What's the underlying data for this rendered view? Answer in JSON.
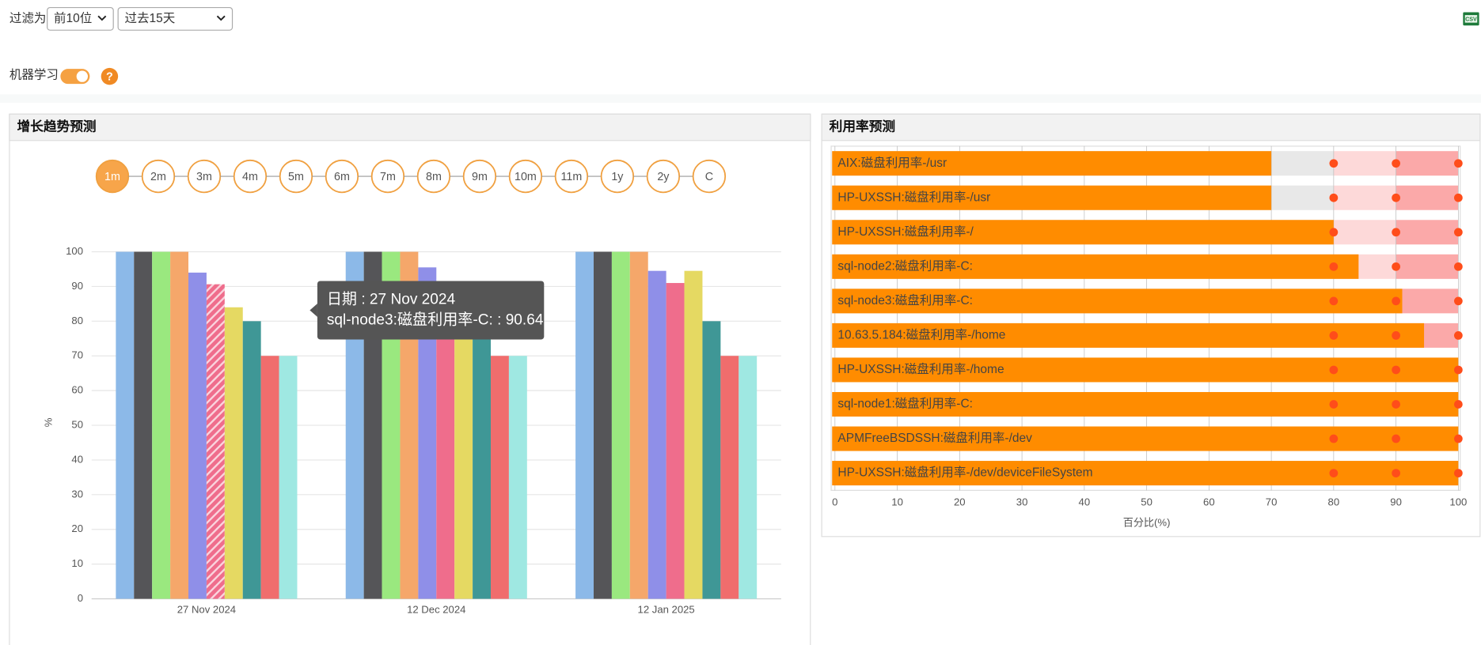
{
  "filter": {
    "label": "过滤为",
    "top": "前10位",
    "period": "过去15天"
  },
  "ml": {
    "label": "机器学习",
    "help": "?"
  },
  "csv": "CSV",
  "chart_data": [
    {
      "type": "bar",
      "title": "增长趋势预测",
      "ranges": [
        "1m",
        "2m",
        "3m",
        "4m",
        "5m",
        "6m",
        "7m",
        "8m",
        "9m",
        "10m",
        "11m",
        "1y",
        "2y",
        "C"
      ],
      "active_range": 0,
      "categories": [
        "27 Nov 2024",
        "12 Dec 2024",
        "12 Jan 2025"
      ],
      "series": [
        {
          "color": "#8cb9e8",
          "values": [
            100,
            100,
            100
          ]
        },
        {
          "color": "#555558",
          "values": [
            100,
            100,
            100
          ]
        },
        {
          "color": "#9ae87f",
          "values": [
            100,
            100,
            100
          ]
        },
        {
          "color": "#f5a76a",
          "values": [
            100,
            100,
            100
          ]
        },
        {
          "color": "#8f8fe8",
          "values": [
            94,
            95.5,
            94.5
          ]
        },
        {
          "color": "#ef6d8c",
          "values": [
            90.64,
            91,
            91
          ]
        },
        {
          "color": "#e5d962",
          "values": [
            84,
            84,
            94.5
          ]
        },
        {
          "color": "#3f9796",
          "values": [
            80,
            80,
            80
          ]
        },
        {
          "color": "#f06d6d",
          "values": [
            70,
            70,
            70
          ]
        },
        {
          "color": "#9fe8e2",
          "values": [
            70,
            70,
            70
          ]
        }
      ],
      "ylim": [
        0,
        100
      ],
      "yticks": [
        0,
        10,
        20,
        30,
        40,
        50,
        60,
        70,
        80,
        90,
        100
      ],
      "ylabel": "%",
      "grid": true,
      "tooltip": {
        "lines": [
          "日期 : 27 Nov 2024",
          "sql-node3:磁盘利用率-C: : 90.64"
        ],
        "series": 5,
        "category": 0
      }
    },
    {
      "type": "bullet",
      "title": "利用率预测",
      "categories": [
        "AIX:磁盘利用率-/usr",
        "HP-UXSSH:磁盘利用率-/usr",
        "HP-UXSSH:磁盘利用率-/",
        "sql-node2:磁盘利用率-C:",
        "sql-node3:磁盘利用率-C:",
        "10.63.5.184:磁盘利用率-/home",
        "HP-UXSSH:磁盘利用率-/home",
        "sql-node1:磁盘利用率-C:",
        "APMFreeBSDSSH:磁盘利用率-/dev",
        "HP-UXSSH:磁盘利用率-/dev/deviceFileSystem"
      ],
      "values": [
        70,
        70,
        80,
        84,
        91,
        94.5,
        100,
        100,
        100,
        100
      ],
      "color": "#ff8c00",
      "thresholds": [
        80,
        90,
        100
      ],
      "threshold_color": "#ff4d1a",
      "band_colors": [
        "#e8e8e8",
        "#fdd9d9",
        "#fba9a9"
      ],
      "xlim": [
        0,
        100
      ],
      "xticks": [
        0,
        10,
        20,
        30,
        40,
        50,
        60,
        70,
        80,
        90,
        100
      ],
      "xlabel": "百分比(%)",
      "grid": true
    }
  ]
}
